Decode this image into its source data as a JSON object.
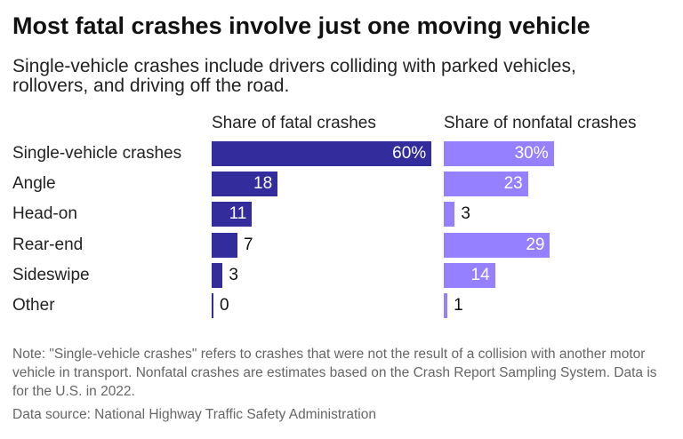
{
  "title": "Most fatal crashes involve just one moving vehicle",
  "subtitle": "Single-vehicle crashes include drivers colliding with parked vehicles, rollovers, and driving off the road.",
  "note": "Note: \"Single-vehicle crashes\" refers to crashes that were not the result of a collision with another motor vehicle in transport. Nonfatal crashes are estimates based on the Crash Report Sampling System. Data is for the U.S. in 2022.",
  "source": "Data source: National Highway Traffic Safety Administration",
  "chart_data": {
    "type": "bar",
    "orientation": "horizontal",
    "categories": [
      "Single-vehicle crashes",
      "Angle",
      "Head-on",
      "Rear-end",
      "Sideswipe",
      "Other"
    ],
    "series": [
      {
        "name": "Share of fatal crashes",
        "values": [
          60,
          18,
          11,
          7,
          3,
          0
        ],
        "labels": [
          "60%",
          "18",
          "11",
          "7",
          "3",
          "0"
        ],
        "color": "#322c9c"
      },
      {
        "name": "Share of nonfatal crashes",
        "values": [
          30,
          23,
          3,
          29,
          14,
          1
        ],
        "labels": [
          "30%",
          "23",
          "3",
          "29",
          "14",
          "1"
        ],
        "color": "#9580ff"
      }
    ],
    "unit": "%",
    "grid": false
  }
}
